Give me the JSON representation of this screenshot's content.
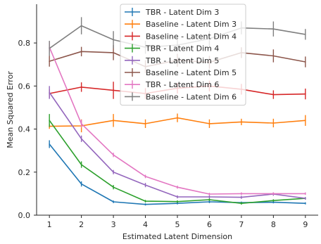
{
  "chart_data": {
    "type": "line",
    "xlabel": "Estimated Latent Dimension",
    "ylabel": "Mean Squared Error",
    "xlim": [
      0.6,
      9.4
    ],
    "ylim": [
      0.0,
      0.98
    ],
    "x": [
      1,
      2,
      3,
      4,
      5,
      6,
      7,
      8,
      9
    ],
    "xticks": [
      "1",
      "2",
      "3",
      "4",
      "5",
      "6",
      "7",
      "8",
      "9"
    ],
    "yticks": [
      0.0,
      0.2,
      0.4,
      0.6,
      0.8
    ],
    "ytick_labels": [
      "0.0",
      "0.2",
      "0.4",
      "0.6",
      "0.8"
    ],
    "grid": false,
    "legend_position": "top-center",
    "series": [
      {
        "name": "TBR - Latent Dim 3",
        "color": "#1f77b4",
        "values": [
          0.33,
          0.145,
          0.062,
          0.05,
          0.055,
          0.062,
          0.058,
          0.06,
          0.055
        ],
        "errors": [
          0.018,
          0.012,
          0.006,
          0.005,
          0.005,
          0.006,
          0.005,
          0.005,
          0.005
        ]
      },
      {
        "name": "Baseline - Latent Dim 3",
        "color": "#ff7f0e",
        "values": [
          0.413,
          0.415,
          0.44,
          0.425,
          0.452,
          0.425,
          0.433,
          0.428,
          0.44
        ],
        "errors": [
          0.012,
          0.03,
          0.03,
          0.02,
          0.02,
          0.02,
          0.015,
          0.02,
          0.025
        ]
      },
      {
        "name": "Baseline - Latent Dim 4",
        "color": "#d62728",
        "values": [
          0.565,
          0.595,
          0.58,
          0.565,
          0.59,
          0.6,
          0.585,
          0.56,
          0.563
        ],
        "errors": [
          0.02,
          0.022,
          0.04,
          0.025,
          0.025,
          0.025,
          0.025,
          0.02,
          0.025
        ]
      },
      {
        "name": "TBR - Latent Dim 4",
        "color": "#2ca02c",
        "values": [
          0.44,
          0.235,
          0.13,
          0.065,
          0.063,
          0.072,
          0.055,
          0.068,
          0.078
        ],
        "errors": [
          0.03,
          0.015,
          0.01,
          0.006,
          0.006,
          0.006,
          0.006,
          0.006,
          0.006
        ]
      },
      {
        "name": "TBR - Latent Dim 5",
        "color": "#9467bd",
        "values": [
          0.57,
          0.355,
          0.2,
          0.14,
          0.085,
          0.085,
          0.083,
          0.098,
          0.078
        ],
        "errors": [
          0.03,
          0.015,
          0.01,
          0.01,
          0.007,
          0.007,
          0.007,
          0.008,
          0.006
        ]
      },
      {
        "name": "Baseline - Latent Dim 5",
        "color": "#8c564b",
        "values": [
          0.715,
          0.76,
          0.755,
          0.69,
          0.72,
          0.71,
          0.755,
          0.74,
          0.712
        ],
        "errors": [
          0.025,
          0.022,
          0.035,
          0.03,
          0.03,
          0.03,
          0.025,
          0.03,
          0.025
        ]
      },
      {
        "name": "TBR - Latent Dim 6",
        "color": "#e377c2",
        "values": [
          0.78,
          0.425,
          0.28,
          0.18,
          0.13,
          0.098,
          0.1,
          0.1,
          0.1
        ],
        "errors": [
          0.025,
          0.018,
          0.01,
          0.008,
          0.007,
          0.006,
          0.006,
          0.006,
          0.006
        ]
      },
      {
        "name": "Baseline - Latent Dim 6",
        "color": "#7f7f7f",
        "values": [
          0.775,
          0.88,
          0.815,
          0.78,
          0.79,
          0.82,
          0.87,
          0.865,
          0.84
        ],
        "errors": [
          0.035,
          0.04,
          0.04,
          0.03,
          0.03,
          0.035,
          0.03,
          0.035,
          0.025
        ]
      }
    ]
  }
}
